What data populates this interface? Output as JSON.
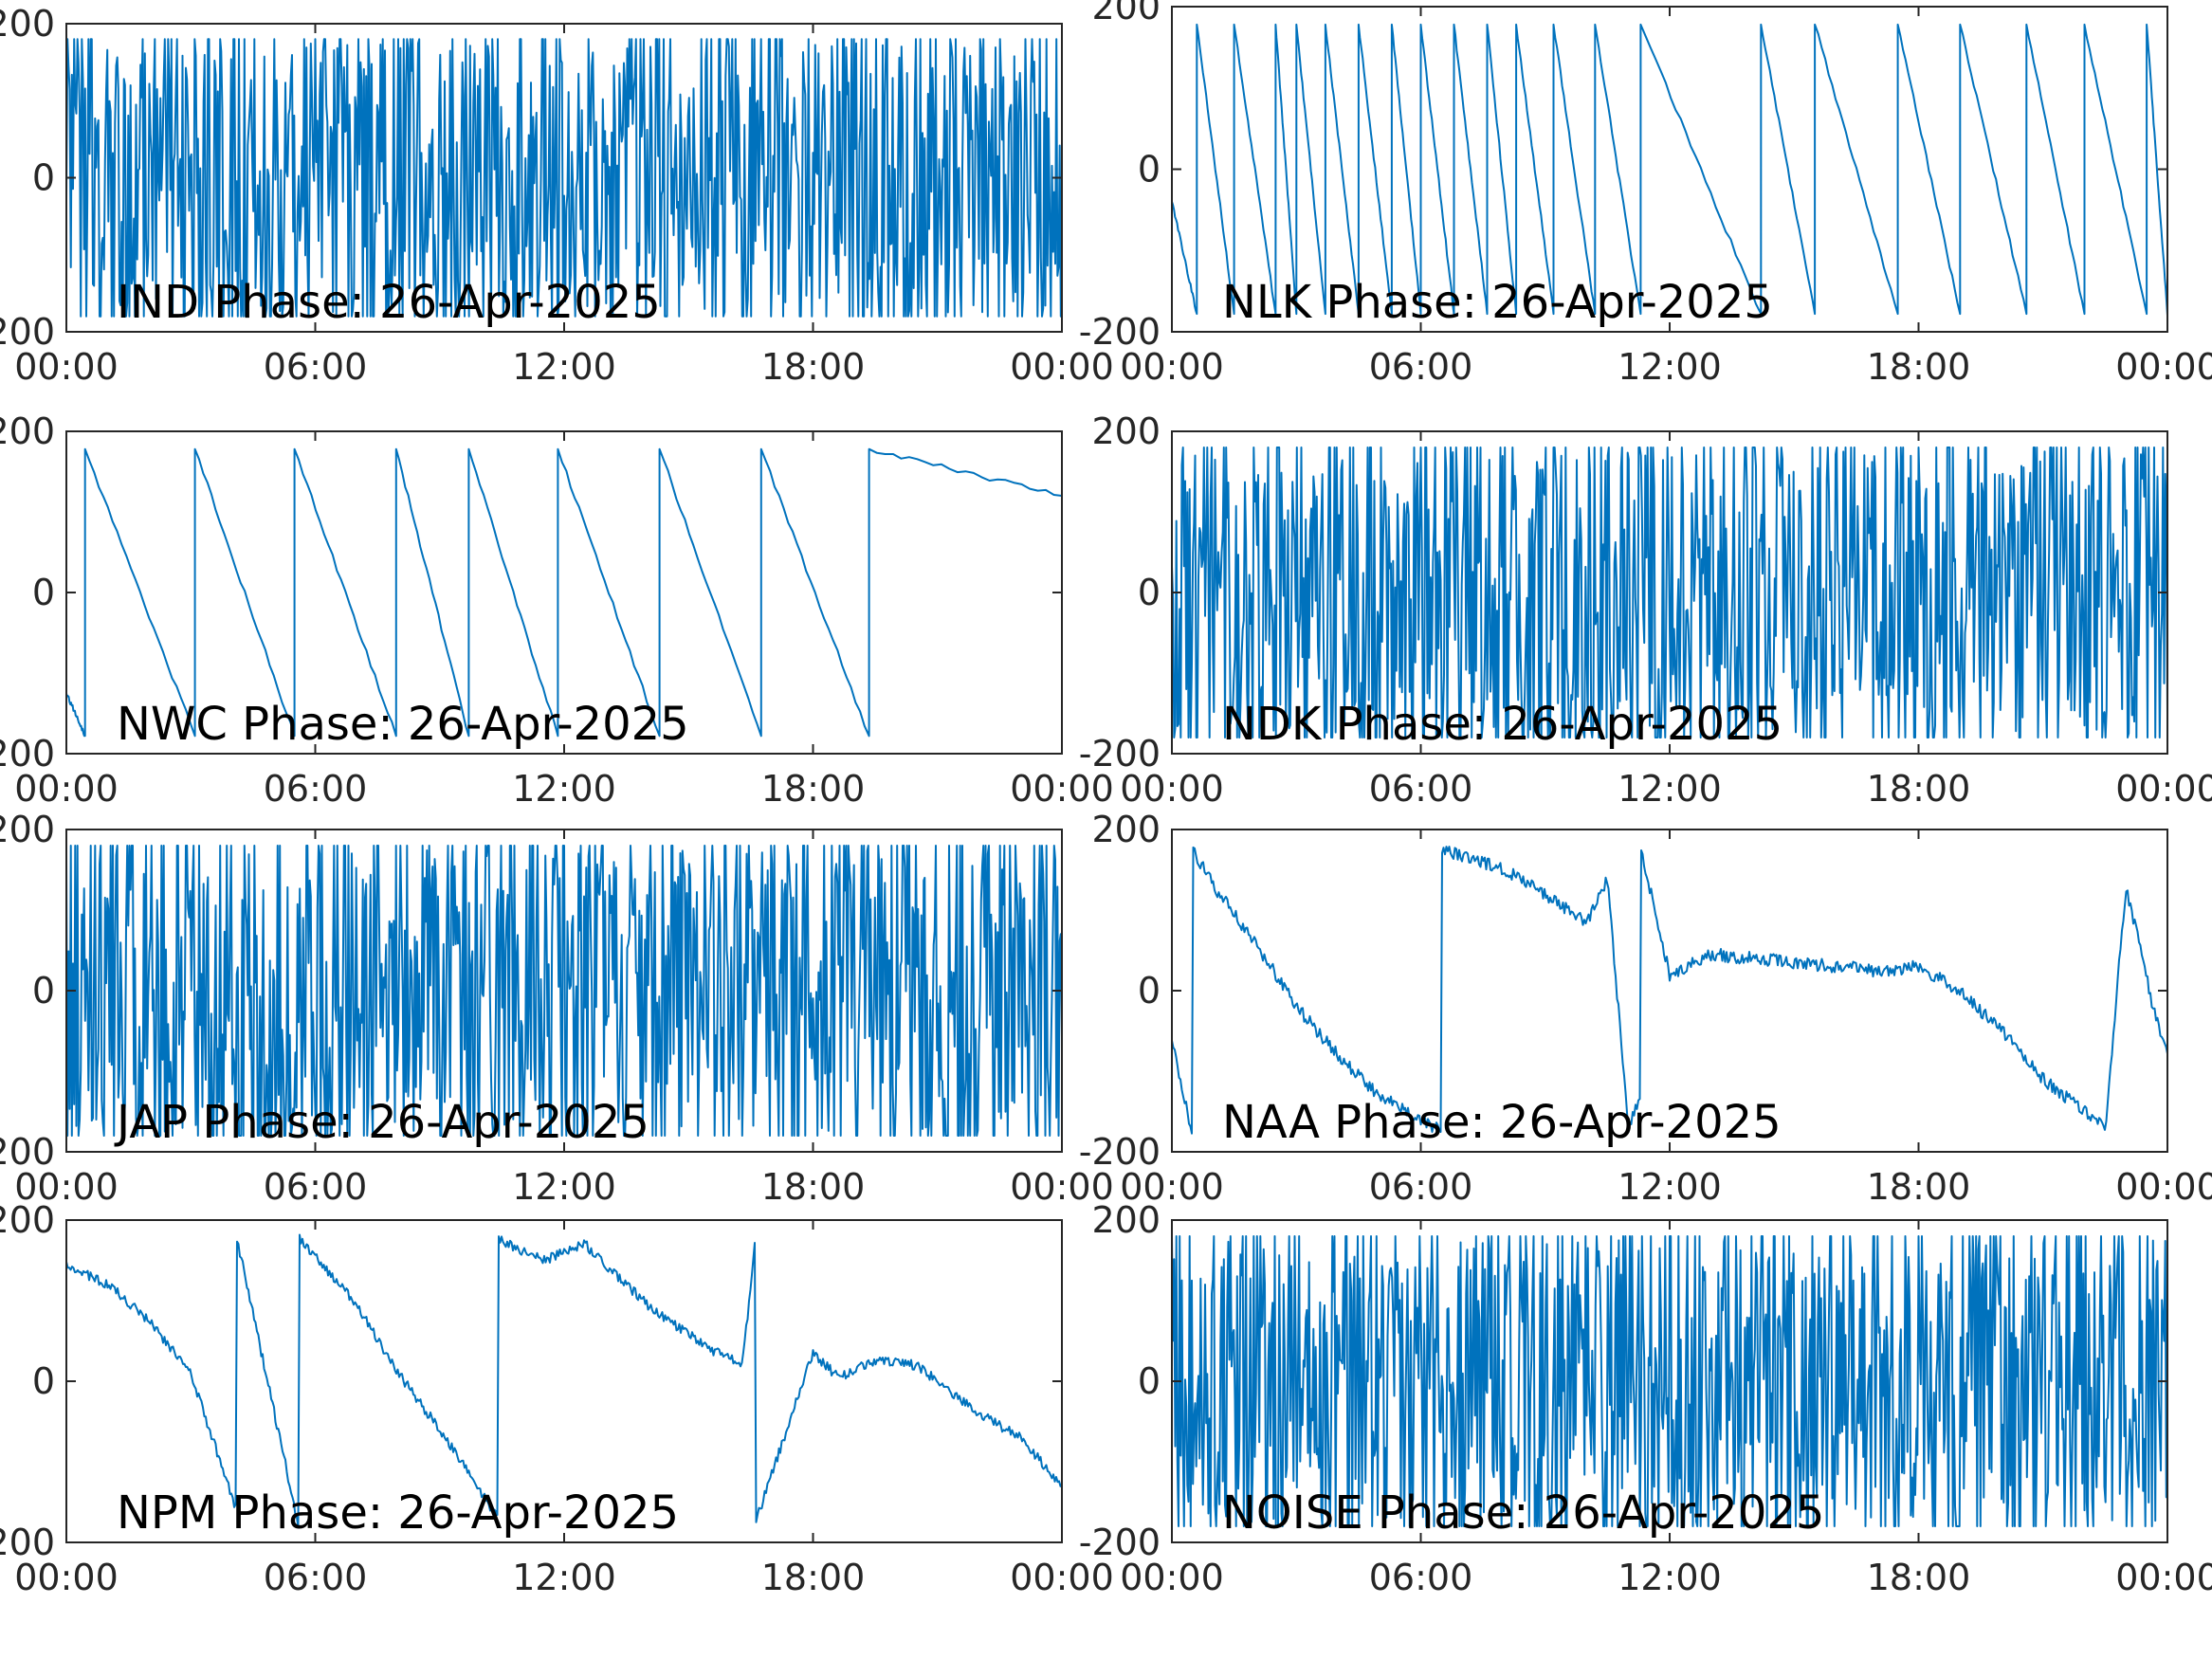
{
  "chart_data": [
    {
      "type": "line",
      "title": "IND Phase: 26-Apr-2025",
      "xlim": [
        "00:00",
        "24:00"
      ],
      "ylim": [
        -200,
        200
      ],
      "x_tick_labels": [
        "00:00",
        "06:00",
        "12:00",
        "18:00",
        "00:00"
      ],
      "y_tick_labels": [
        "-200",
        "0",
        "200"
      ],
      "series": [
        {
          "color": "#0072BD",
          "pattern": "noise",
          "x_hours": [
            0,
            24
          ],
          "y": [
            0,
            0
          ],
          "wraps": [],
          "amp": 175
        }
      ]
    },
    {
      "type": "line",
      "title": "NLK Phase: 26-Apr-2025",
      "xlim": [
        "00:00",
        "24:00"
      ],
      "ylim": [
        -200,
        200
      ],
      "x_tick_labels": [
        "00:00",
        "06:00",
        "12:00",
        "18:00",
        "00:00"
      ],
      "y_tick_labels": [
        "-200",
        "0",
        "200"
      ],
      "series": [
        {
          "color": "#0072BD",
          "pattern": "sawtooth",
          "x_hours": [
            0,
            24
          ],
          "y": [
            -40,
            -180
          ],
          "wraps": [
            0.6,
            1.5,
            2.5,
            3.0,
            3.7,
            4.5,
            5.3,
            6.0,
            6.8,
            7.6,
            8.3,
            9.2,
            10.2,
            11.3,
            14.2,
            15.5,
            17.5,
            19.0,
            20.6,
            22.0,
            23.5
          ],
          "amp": 175
        }
      ]
    },
    {
      "type": "line",
      "title": "NWC Phase: 26-Apr-2025",
      "xlim": [
        "00:00",
        "24:00"
      ],
      "ylim": [
        -200,
        200
      ],
      "x_tick_labels": [
        "00:00",
        "06:00",
        "12:00",
        "18:00",
        "00:00"
      ],
      "y_tick_labels": [
        "-200",
        "0",
        "200"
      ],
      "series": [
        {
          "color": "#0072BD",
          "pattern": "sawtooth",
          "x_hours": [
            0,
            24
          ],
          "y": [
            -125,
            120
          ],
          "wraps": [
            0.45,
            3.1,
            5.5,
            7.95,
            9.7,
            11.85,
            14.3,
            16.75,
            19.35
          ],
          "amp": 175
        }
      ]
    },
    {
      "type": "line",
      "title": "NDK Phase: 26-Apr-2025",
      "xlim": [
        "00:00",
        "24:00"
      ],
      "ylim": [
        -200,
        200
      ],
      "x_tick_labels": [
        "00:00",
        "06:00",
        "12:00",
        "18:00",
        "00:00"
      ],
      "y_tick_labels": [
        "-200",
        "0",
        "200"
      ],
      "series": [
        {
          "color": "#0072BD",
          "pattern": "noise",
          "x_hours": [
            0,
            24
          ],
          "y": [
            0,
            0
          ],
          "wraps": [],
          "amp": 175
        }
      ]
    },
    {
      "type": "line",
      "title": "JAP Phase: 26-Apr-2025",
      "xlim": [
        "00:00",
        "24:00"
      ],
      "ylim": [
        -200,
        200
      ],
      "x_tick_labels": [
        "00:00",
        "06:00",
        "12:00",
        "18:00",
        "00:00"
      ],
      "y_tick_labels": [
        "-200",
        "0",
        "200"
      ],
      "series": [
        {
          "color": "#0072BD",
          "pattern": "noise",
          "x_hours": [
            0,
            24
          ],
          "y": [
            0,
            0
          ],
          "wraps": [],
          "amp": 175
        }
      ]
    },
    {
      "type": "line",
      "title": "NAA Phase: 26-Apr-2025",
      "xlim": [
        "00:00",
        "24:00"
      ],
      "ylim": [
        -200,
        200
      ],
      "x_tick_labels": [
        "00:00",
        "06:00",
        "12:00",
        "18:00",
        "00:00"
      ],
      "y_tick_labels": [
        "-200",
        "0",
        "200"
      ],
      "series": [
        {
          "color": "#0072BD",
          "pattern": "path",
          "x_hours": [
            0,
            0.5,
            0.5,
            1,
            2,
            3,
            4,
            5,
            6,
            6.5,
            6.5,
            8,
            9,
            10,
            10.5,
            11,
            11.3,
            11.3,
            12,
            13,
            15,
            17,
            18,
            19,
            20,
            21,
            22,
            22.5,
            23,
            23.7,
            24
          ],
          "y": [
            -60,
            -180,
            175,
            130,
            60,
            -20,
            -80,
            -130,
            -160,
            -175,
            175,
            150,
            120,
            85,
            140,
            -170,
            -130,
            175,
            20,
            45,
            35,
            25,
            30,
            0,
            -50,
            -110,
            -150,
            -170,
            130,
            -30,
            -80
          ],
          "wraps": [],
          "amp": 8
        }
      ]
    },
    {
      "type": "line",
      "title": "NPM Phase: 26-Apr-2025",
      "xlim": [
        "00:00",
        "24:00"
      ],
      "ylim": [
        -200,
        200
      ],
      "x_tick_labels": [
        "00:00",
        "06:00",
        "12:00",
        "18:00",
        "00:00"
      ],
      "y_tick_labels": [
        "-200",
        "0",
        "200"
      ],
      "series": [
        {
          "color": "#0072BD",
          "pattern": "path",
          "x_hours": [
            0,
            1,
            2,
            3,
            4.1,
            4.1,
            5.6,
            5.6,
            7,
            8,
            9,
            10.4,
            10.4,
            11.5,
            12.5,
            14,
            15.5,
            16.3,
            16.6,
            16.6,
            17.3,
            18,
            18.6,
            19.5,
            20.5,
            22,
            23,
            24
          ],
          "y": [
            145,
            120,
            75,
            10,
            -160,
            180,
            -180,
            178,
            95,
            10,
            -60,
            -170,
            176,
            150,
            170,
            95,
            40,
            20,
            170,
            -178,
            -70,
            35,
            5,
            25,
            20,
            -40,
            -70,
            -130
          ],
          "wraps": [],
          "amp": 6
        }
      ]
    },
    {
      "type": "line",
      "title": "NOISE Phase: 26-Apr-2025",
      "xlim": [
        "00:00",
        "24:00"
      ],
      "ylim": [
        -200,
        200
      ],
      "x_tick_labels": [
        "00:00",
        "06:00",
        "12:00",
        "18:00",
        "00:00"
      ],
      "y_tick_labels": [
        "-200",
        "0",
        "200"
      ],
      "series": [
        {
          "color": "#0072BD",
          "pattern": "noise",
          "x_hours": [
            0,
            24
          ],
          "y": [
            0,
            0
          ],
          "wraps": [],
          "amp": 175
        }
      ]
    }
  ]
}
